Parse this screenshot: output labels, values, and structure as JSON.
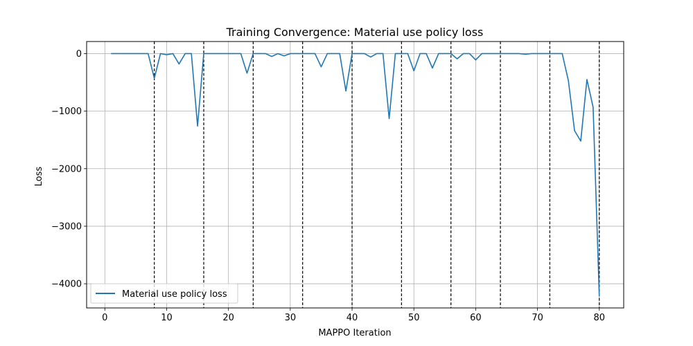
{
  "chart_data": {
    "type": "line",
    "title": "Training Convergence: Material use policy loss",
    "xlabel": "MAPPO Iteration",
    "ylabel": "Loss",
    "xlim": [
      -2.95,
      83.95
    ],
    "ylim": [
      -4420,
      210
    ],
    "xticks": [
      0,
      10,
      20,
      30,
      40,
      50,
      60,
      70,
      80
    ],
    "xtick_labels": [
      "0",
      "10",
      "20",
      "30",
      "40",
      "50",
      "60",
      "70",
      "80"
    ],
    "yticks": [
      0,
      -1000,
      -2000,
      -3000,
      -4000
    ],
    "ytick_labels": [
      "0",
      "−1000",
      "−2000",
      "−3000",
      "−4000"
    ],
    "grid": true,
    "vlines": [
      8,
      16,
      24,
      32,
      40,
      48,
      56,
      64,
      72,
      80
    ],
    "legend_position": "lower-left",
    "series": [
      {
        "name": "Material use policy loss",
        "color": "#1f77b4",
        "x": [
          1,
          2,
          3,
          4,
          5,
          6,
          7,
          8,
          9,
          10,
          11,
          12,
          13,
          14,
          15,
          16,
          17,
          18,
          19,
          20,
          21,
          22,
          23,
          24,
          25,
          26,
          27,
          28,
          29,
          30,
          31,
          32,
          33,
          34,
          35,
          36,
          37,
          38,
          39,
          40,
          41,
          42,
          43,
          44,
          45,
          46,
          47,
          48,
          49,
          50,
          51,
          52,
          53,
          54,
          55,
          56,
          57,
          58,
          59,
          60,
          61,
          62,
          63,
          64,
          65,
          66,
          67,
          68,
          69,
          70,
          71,
          72,
          73,
          74,
          75,
          76,
          77,
          78,
          79,
          80
        ],
        "y": [
          0,
          0,
          0,
          0,
          0,
          0,
          0,
          -430,
          0,
          -20,
          0,
          -180,
          0,
          0,
          -1260,
          0,
          0,
          0,
          0,
          0,
          0,
          0,
          -340,
          0,
          0,
          0,
          -50,
          0,
          -40,
          0,
          0,
          0,
          0,
          0,
          -230,
          0,
          0,
          0,
          -650,
          0,
          0,
          0,
          -60,
          0,
          0,
          -1130,
          0,
          0,
          0,
          -300,
          0,
          0,
          -250,
          0,
          0,
          0,
          -90,
          0,
          0,
          -110,
          0,
          0,
          0,
          0,
          0,
          0,
          0,
          -10,
          0,
          0,
          0,
          0,
          0,
          0,
          -470,
          -1340,
          -1520,
          -450,
          -930,
          -4220
        ]
      }
    ]
  }
}
